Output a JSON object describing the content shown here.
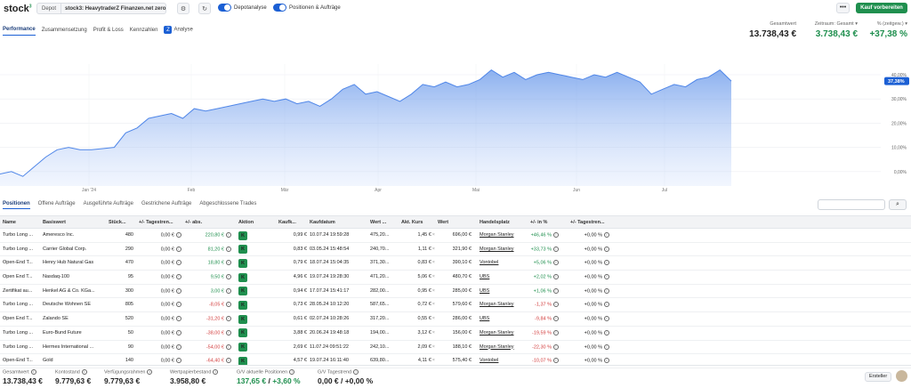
{
  "app": {
    "logo": "stock",
    "logo_sup": "3"
  },
  "toolbar": {
    "depot_label": "Depot",
    "depot_value": "stock3: HeavytraderZ Finanzen.net zero",
    "toggle_depotanalyse": "Depotanalyse",
    "toggle_positionen": "Positionen & Aufträge",
    "more_label": "•••",
    "buy_label": "Kauf vorbereiten"
  },
  "nav": {
    "tabs": [
      "Performance",
      "Zusammensetzung",
      "Profit & Loss",
      "Kennzahlen"
    ],
    "analyse_label": "Analyse"
  },
  "summary": {
    "gesamtwert_label": "Gesamtwert",
    "gesamtwert_value": "13.738,43 €",
    "zeitraum_label": "Zeitraum: Gesamt",
    "zeitraum_value": "3.738,43 €",
    "pct_label": "% (zeitgew.)",
    "pct_value": "+37,38 %"
  },
  "chart_data": {
    "type": "area",
    "x_tick_labels": [
      "Jan '24",
      "Feb",
      "Mär",
      "Apr",
      "Mai",
      "Jun",
      "Jul"
    ],
    "y_tick_labels": [
      "-10,00%",
      "0,00%",
      "10,00%",
      "20,00%",
      "30,00%",
      "40,00%"
    ],
    "ylim": [
      -10,
      40
    ],
    "current_label": "37,38%",
    "color": "#4f86e8",
    "values": [
      -1,
      0,
      -2,
      2,
      6,
      9,
      10,
      9,
      9,
      9.5,
      10,
      16,
      18,
      22,
      23,
      24,
      22,
      26,
      25,
      26,
      27,
      28,
      29,
      30,
      29,
      30,
      28,
      29,
      27,
      30,
      34,
      36,
      32,
      33,
      31,
      29,
      32,
      36,
      35,
      37,
      35,
      36,
      38,
      42,
      39,
      41,
      38,
      40,
      41,
      40,
      39,
      38,
      40,
      39,
      41,
      39,
      37,
      32,
      34,
      36,
      35,
      38,
      39,
      42,
      37.38
    ]
  },
  "table_tabs": [
    "Positionen",
    "Offene Aufträge",
    "Ausgeführte Aufträge",
    "Gestrichene Aufträge",
    "Abgeschlossene Trades"
  ],
  "table": {
    "headers": [
      "Name",
      "Basiswert",
      "Stück...",
      "+/- Tagestren...",
      "+/- abs.",
      "Aktion",
      "Kaufk...",
      "Kaufdatum",
      "Wert ...",
      "Akt. Kurs",
      "Wert",
      "Handelsplatz",
      "+/- in %",
      "+/- Tagestren..."
    ],
    "action_label": "K",
    "rows": [
      {
        "name": "Turbo Long ...",
        "basis": "Ameresco Inc.",
        "stueck": "480",
        "tag": "0,00 €",
        "abs": "220,80 €",
        "abs_dir": "up",
        "kaufk": "0,99 €",
        "datum": "10.07.24 19:59:28",
        "wert1": "475,20...",
        "kurs": "1,45 €",
        "wert": "696,00 €",
        "platz": "Morgan Stanley",
        "pct": "+46,46 %",
        "pct_dir": "up",
        "tagp": "+0,00 %"
      },
      {
        "name": "Turbo Long ...",
        "basis": "Carrier Global Corp.",
        "stueck": "290",
        "tag": "0,00 €",
        "abs": "81,20 €",
        "abs_dir": "up",
        "kaufk": "0,83 €",
        "datum": "03.05.24 15:48:54",
        "wert1": "240,70...",
        "kurs": "1,11 €",
        "wert": "321,90 €",
        "platz": "Morgan Stanley",
        "pct": "+33,73 %",
        "pct_dir": "up",
        "tagp": "+0,00 %"
      },
      {
        "name": "Open-End T...",
        "basis": "Henry Hub Natural Gas",
        "stueck": "470",
        "tag": "0,00 €",
        "abs": "18,80 €",
        "abs_dir": "up",
        "kaufk": "0,79 €",
        "datum": "18.07.24 15:04:35",
        "wert1": "371,30...",
        "kurs": "0,83 €",
        "wert": "390,10 €",
        "platz": "Vontobel",
        "pct": "+5,06 %",
        "pct_dir": "up",
        "tagp": "+0,00 %"
      },
      {
        "name": "Open End T...",
        "basis": "Nasdaq-100",
        "stueck": "95",
        "tag": "0,00 €",
        "abs": "9,50 €",
        "abs_dir": "up",
        "kaufk": "4,96 €",
        "datum": "19.07.24 19:28:30",
        "wert1": "471,20...",
        "kurs": "5,06 €",
        "wert": "480,70 €",
        "platz": "UBS",
        "pct": "+2,02 %",
        "pct_dir": "up",
        "tagp": "+0,00 %"
      },
      {
        "name": "Zertifikat au...",
        "basis": "Henkel AG & Co. KGa...",
        "stueck": "300",
        "tag": "0,00 €",
        "abs": "3,00 €",
        "abs_dir": "up",
        "kaufk": "0,94 €",
        "datum": "17.07.24 15:41:17",
        "wert1": "282,00...",
        "kurs": "0,95 €",
        "wert": "285,00 €",
        "platz": "UBS",
        "pct": "+1,06 %",
        "pct_dir": "up",
        "tagp": "+0,00 %"
      },
      {
        "name": "Turbo Long ...",
        "basis": "Deutsche Wohnen SE",
        "stueck": "805",
        "tag": "0,00 €",
        "abs": "-8,05 €",
        "abs_dir": "down",
        "kaufk": "0,73 €",
        "datum": "28.05.24 10:12:20",
        "wert1": "587,65...",
        "kurs": "0,72 €",
        "wert": "579,60 €",
        "platz": "Morgan Stanley",
        "pct": "-1,37 %",
        "pct_dir": "down",
        "tagp": "+0,00 %"
      },
      {
        "name": "Open End T...",
        "basis": "Zalando SE",
        "stueck": "520",
        "tag": "0,00 €",
        "abs": "-31,20 €",
        "abs_dir": "down",
        "kaufk": "0,61 €",
        "datum": "02.07.24 10:28:26",
        "wert1": "317,20...",
        "kurs": "0,55 €",
        "wert": "286,00 €",
        "platz": "UBS",
        "pct": "-9,84 %",
        "pct_dir": "down",
        "tagp": "+0,00 %"
      },
      {
        "name": "Turbo Long ...",
        "basis": "Euro-Bund Future",
        "stueck": "50",
        "tag": "0,00 €",
        "abs": "-38,00 €",
        "abs_dir": "down",
        "kaufk": "3,88 €",
        "datum": "20.06.24 19:48:18",
        "wert1": "194,00...",
        "kurs": "3,12 €",
        "wert": "156,00 €",
        "platz": "Morgan Stanley",
        "pct": "-19,59 %",
        "pct_dir": "down",
        "tagp": "+0,00 %"
      },
      {
        "name": "Turbo Long ...",
        "basis": "Hermes International ...",
        "stueck": "90",
        "tag": "0,00 €",
        "abs": "-54,00 €",
        "abs_dir": "down",
        "kaufk": "2,69 €",
        "datum": "11.07.24 09:51:22",
        "wert1": "242,10...",
        "kurs": "2,09 €",
        "wert": "188,10 €",
        "platz": "Morgan Stanley",
        "pct": "-22,30 %",
        "pct_dir": "down",
        "tagp": "+0,00 %"
      },
      {
        "name": "Open-End T...",
        "basis": "Gold",
        "stueck": "140",
        "tag": "0,00 €",
        "abs": "-64,40 €",
        "abs_dir": "down",
        "kaufk": "4,57 €",
        "datum": "19.07.24 16:11:40",
        "wert1": "639,80...",
        "kurs": "4,11 €",
        "wert": "575,40 €",
        "platz": "Vontobel",
        "pct": "-10,07 %",
        "pct_dir": "down",
        "tagp": "+0,00 %"
      }
    ]
  },
  "footer": {
    "gesamtwert_label": "Gesamtwert",
    "gesamtwert": "13.738,43 €",
    "konto_label": "Kontostand",
    "konto": "9.779,63 €",
    "verf_label": "Verfügungsrahmen",
    "verf": "9.779,63 €",
    "wp_label": "Wertpapierbestand",
    "wp": "3.958,80 €",
    "gv_label": "G/V aktuelle Positionen",
    "gv_abs": "137,65 €",
    "gv_sep": " / ",
    "gv_pct": "+3,60 %",
    "gvt_label": "G/V Tagestrend",
    "gvt": "0,00 € / +0,00 %",
    "creator_label": "Ersteller"
  }
}
